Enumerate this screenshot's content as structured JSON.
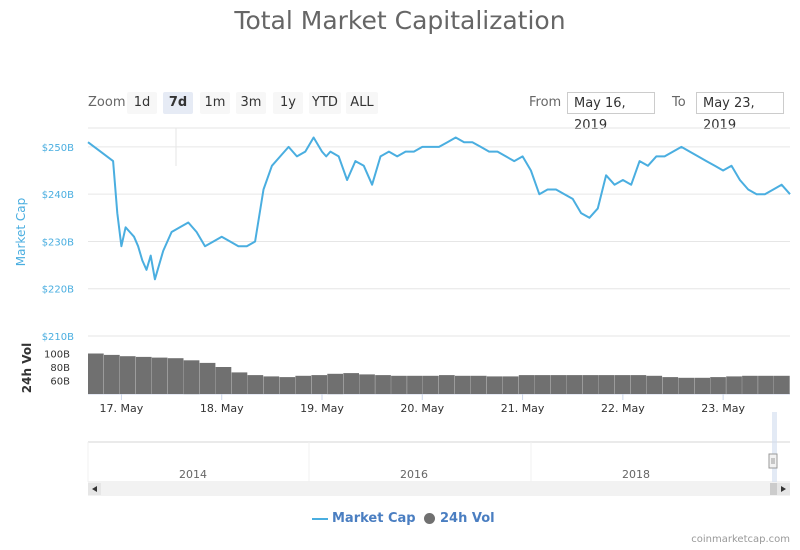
{
  "title": "Total Market Capitalization",
  "zoom": {
    "label": "Zoom",
    "buttons": [
      "1d",
      "7d",
      "1m",
      "3m",
      "1y",
      "YTD",
      "ALL"
    ],
    "selected": "7d"
  },
  "range": {
    "from_label": "From",
    "from_value": "May 16, 2019",
    "to_label": "To",
    "to_value": "May 23, 2019"
  },
  "colors": {
    "market_cap": "#4aaee0",
    "volume": "#707070",
    "navigator_line": "#d6d6d6"
  },
  "chart_data": {
    "type": "line",
    "market_cap": {
      "name": "Market Cap",
      "ylabel": "Market Cap",
      "yticks": [
        "$210B",
        "$220B",
        "$230B",
        "$240B",
        "$250B"
      ],
      "ylim": [
        210,
        254
      ],
      "unit": "billion USD",
      "x_hours": [
        0,
        3,
        6,
        7,
        8,
        9,
        10,
        11,
        12,
        13,
        14,
        15,
        16,
        18,
        20,
        22,
        24,
        26,
        28,
        30,
        32,
        34,
        36,
        38,
        40,
        42,
        44,
        46,
        48,
        50,
        52,
        54,
        56,
        57,
        58,
        60,
        62,
        64,
        66,
        68,
        70,
        72,
        74,
        76,
        78,
        80,
        82,
        84,
        86,
        88,
        90,
        92,
        94,
        96,
        98,
        100,
        102,
        104,
        106,
        108,
        110,
        112,
        114,
        116,
        118,
        120,
        122,
        124,
        126,
        128,
        130,
        132,
        134,
        136,
        138,
        140,
        142,
        144,
        146,
        148,
        150,
        152,
        154,
        156,
        158,
        160,
        162,
        164,
        166,
        168
      ],
      "values": [
        251,
        249,
        247,
        236,
        229,
        233,
        232,
        231,
        229,
        226,
        224,
        227,
        222,
        228,
        232,
        233,
        234,
        232,
        229,
        230,
        231,
        230,
        229,
        229,
        230,
        241,
        246,
        248,
        250,
        248,
        249,
        252,
        249,
        248,
        249,
        248,
        243,
        247,
        246,
        242,
        248,
        249,
        248,
        249,
        249,
        250,
        250,
        250,
        251,
        252,
        251,
        251,
        250,
        249,
        249,
        248,
        247,
        248,
        245,
        240,
        241,
        241,
        240,
        239,
        236,
        235,
        237,
        244,
        242,
        243,
        242,
        247,
        246,
        248,
        248,
        249,
        250,
        249,
        248,
        247,
        246,
        245,
        246,
        243,
        241,
        240,
        240,
        241,
        242,
        240
      ]
    },
    "volume": {
      "name": "24h Vol",
      "ylabel": "24h Vol",
      "yticks": [
        "60B",
        "80B",
        "100B"
      ],
      "ylim": [
        40,
        120
      ],
      "unit": "billion USD",
      "values": [
        100,
        98,
        96,
        95,
        94,
        93,
        90,
        86,
        80,
        72,
        68,
        66,
        65,
        67,
        68,
        70,
        71,
        69,
        68,
        67,
        67,
        67,
        68,
        67,
        67,
        66,
        66,
        68,
        68,
        68,
        68,
        68,
        68,
        68,
        68,
        67,
        65,
        64,
        64,
        65,
        66,
        67,
        67,
        67
      ]
    },
    "x_tick_labels": [
      "17. May",
      "18. May",
      "19. May",
      "20. May",
      "21. May",
      "22. May",
      "23. May"
    ],
    "x_tick_hours": [
      8,
      32,
      56,
      80,
      104,
      128,
      152
    ],
    "x_range_hours": [
      0,
      168
    ],
    "navigator": {
      "labels": [
        "2014",
        "2016",
        "2018"
      ]
    },
    "legend": [
      "Market Cap",
      "24h Vol"
    ]
  },
  "credits": "coinmarketcap.com"
}
